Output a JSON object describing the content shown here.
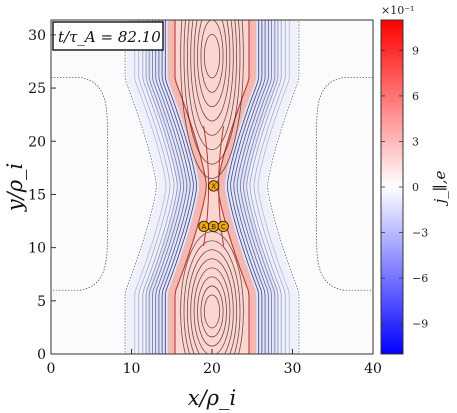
{
  "chart_data": {
    "type": "heatmap",
    "title": "",
    "time_label": "t/τ_A = 82.10",
    "xlabel": "x/ρ_i",
    "ylabel": "y/ρ_i",
    "xlim": [
      0,
      40
    ],
    "ylim": [
      0,
      31.4
    ],
    "xticks": [
      0,
      10,
      20,
      30,
      40
    ],
    "yticks": [
      0,
      5,
      10,
      15,
      20,
      25,
      30
    ],
    "colorbar": {
      "label": "j_∥,e",
      "range": [
        -1.1,
        1.1
      ],
      "multiplier": "×10⁻¹",
      "ticks": [
        -9,
        -6,
        -3,
        0,
        3,
        6,
        9
      ],
      "colors": [
        "#0000ff",
        "#ffffff",
        "#ff0000"
      ]
    },
    "current_sheet": {
      "center_x": 20,
      "x_point": [
        20.2,
        15.8
      ],
      "lobe_upper_center_y": 28,
      "lobe_lower_center_y": 4
    },
    "markers": [
      {
        "label": "X",
        "x": 20.2,
        "y": 15.8
      },
      {
        "label": "A",
        "x": 19.0,
        "y": 12.0
      },
      {
        "label": "B",
        "x": 20.2,
        "y": 12.0
      },
      {
        "label": "C",
        "x": 21.4,
        "y": 12.0
      }
    ],
    "marker_color": "#f5a500"
  }
}
